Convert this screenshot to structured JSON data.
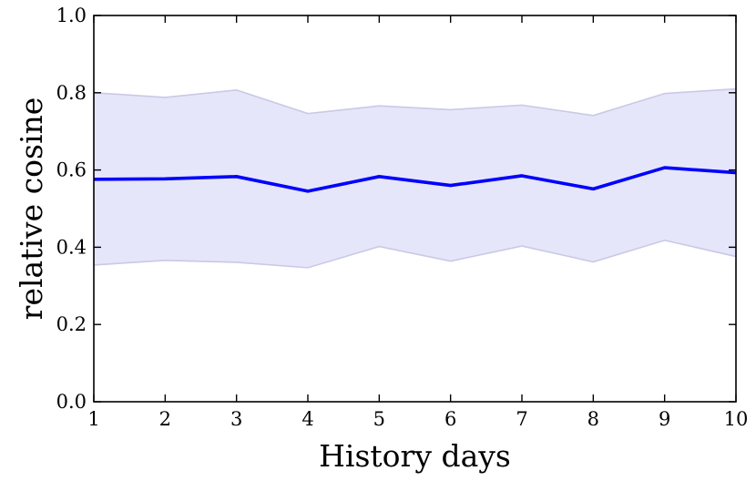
{
  "chart_data": {
    "type": "line",
    "title": "",
    "xlabel": "History days",
    "ylabel": "relative cosine",
    "xlim": [
      1,
      10
    ],
    "ylim": [
      0.0,
      1.0
    ],
    "x": [
      1,
      2,
      3,
      4,
      5,
      6,
      7,
      8,
      9,
      10
    ],
    "x_tick_labels": [
      "1",
      "2",
      "3",
      "4",
      "5",
      "6",
      "7",
      "8",
      "9",
      "10"
    ],
    "y_ticks": [
      0.0,
      0.2,
      0.4,
      0.6,
      0.8,
      1.0
    ],
    "y_tick_labels": [
      "0.0",
      "0.2",
      "0.4",
      "0.6",
      "0.8",
      "1.0"
    ],
    "grid": false,
    "series": [
      {
        "values": [
          0.576,
          0.577,
          0.583,
          0.545,
          0.583,
          0.56,
          0.585,
          0.551,
          0.606,
          0.593
        ],
        "color": "#0000ff"
      }
    ],
    "band": {
      "upper": [
        0.8,
        0.788,
        0.807,
        0.746,
        0.766,
        0.756,
        0.768,
        0.741,
        0.798,
        0.81
      ],
      "lower": [
        0.354,
        0.366,
        0.361,
        0.347,
        0.402,
        0.364,
        0.403,
        0.362,
        0.418,
        0.376
      ],
      "color": "#e6e6fa",
      "edge_color": "#c9c9e6"
    }
  }
}
